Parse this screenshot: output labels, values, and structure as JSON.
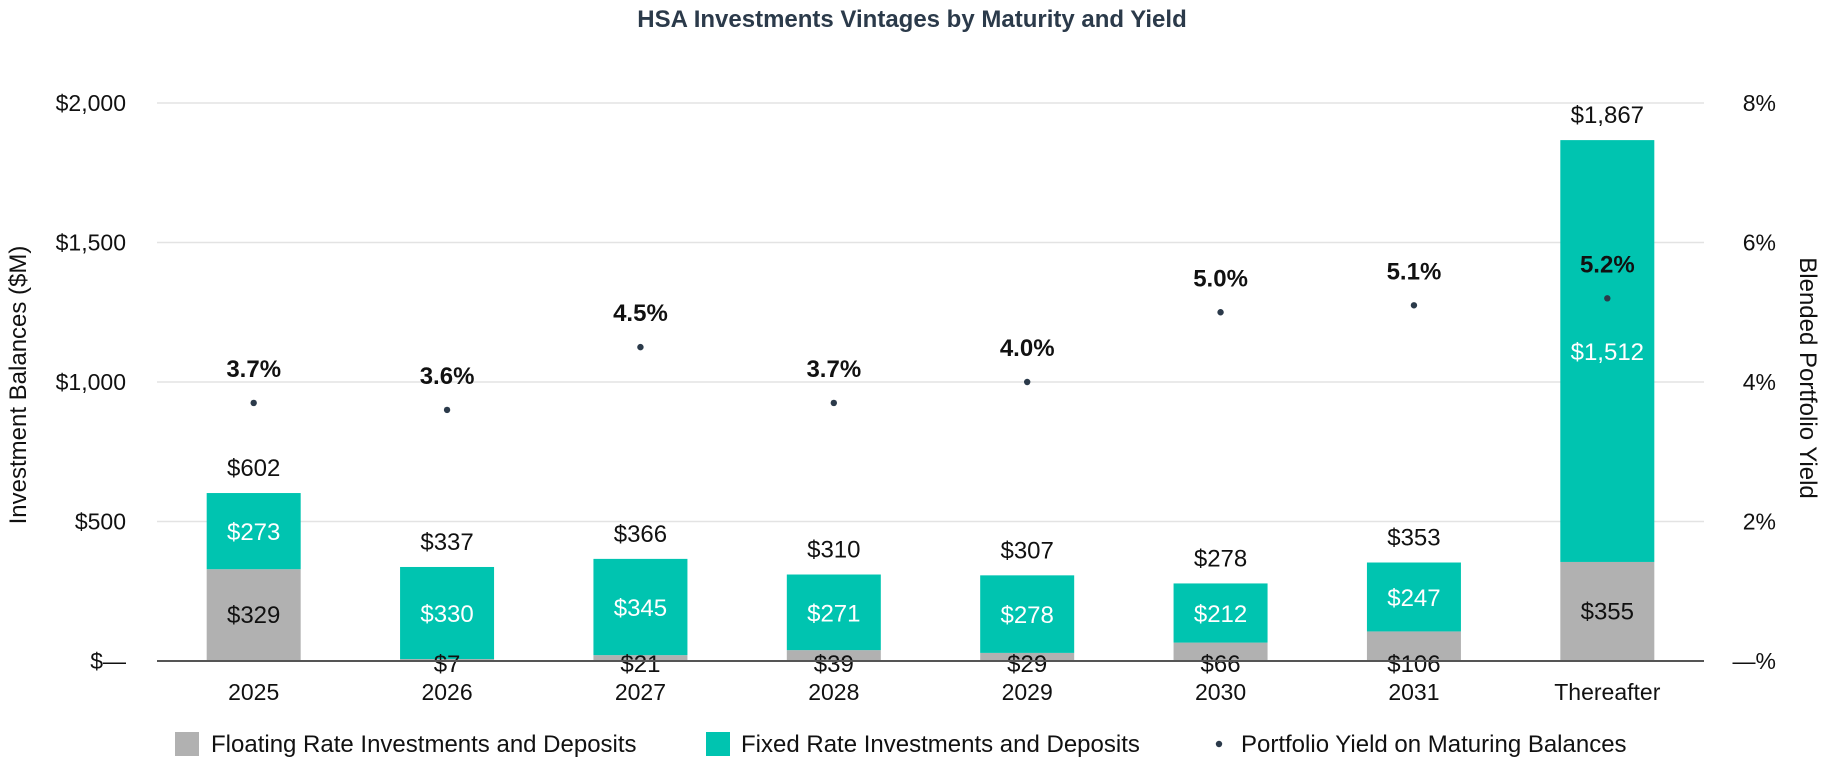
{
  "chart_data": {
    "type": "bar",
    "title": "HSA Investments Vintages by Maturity and Yield",
    "ylabel": "Investment Balances ($M)",
    "y2label": "Blended Portfolio Yield",
    "categories": [
      "2025",
      "2026",
      "2027",
      "2028",
      "2029",
      "2030",
      "2031",
      "Thereafter"
    ],
    "ylim": [
      0,
      2000
    ],
    "y2lim": [
      0,
      8
    ],
    "y_ticks": [
      0,
      500,
      1000,
      1500,
      2000
    ],
    "y_tick_labels": [
      "$—",
      "$500",
      "$1,000",
      "$1,500",
      "$2,000"
    ],
    "y2_ticks": [
      0,
      2,
      4,
      6,
      8
    ],
    "y2_tick_labels": [
      "—%",
      "2%",
      "4%",
      "6%",
      "8%"
    ],
    "grid": true,
    "legend_position": "bottom",
    "series": [
      {
        "name": "Floating Rate Investments and Deposits",
        "kind": "stacked-bar",
        "color": "#b1b1b1",
        "values": [
          329,
          7,
          21,
          39,
          29,
          66,
          106,
          355
        ],
        "labels": [
          "$329",
          "$7",
          "$21",
          "$39",
          "$29",
          "$66",
          "$106",
          "$355"
        ]
      },
      {
        "name": "Fixed Rate Investments and Deposits",
        "kind": "stacked-bar",
        "color": "#00c4b0",
        "values": [
          273,
          330,
          345,
          271,
          278,
          212,
          247,
          1512
        ],
        "labels": [
          "$273",
          "$330",
          "$345",
          "$271",
          "$278",
          "$212",
          "$247",
          "$1,512"
        ]
      },
      {
        "name": "Portfolio Yield on Maturing Balances",
        "kind": "point",
        "axis": "right",
        "color": "#2b3a4a",
        "values": [
          3.7,
          3.6,
          4.5,
          3.7,
          4.0,
          5.0,
          5.1,
          5.2
        ],
        "labels": [
          "3.7%",
          "3.6%",
          "4.5%",
          "3.7%",
          "4.0%",
          "5.0%",
          "5.1%",
          "5.2%"
        ]
      }
    ],
    "totals": [
      602,
      337,
      366,
      310,
      307,
      278,
      353,
      1867
    ],
    "total_labels": [
      "$602",
      "$337",
      "$366",
      "$310",
      "$307",
      "$278",
      "$353",
      "$1,867"
    ]
  }
}
